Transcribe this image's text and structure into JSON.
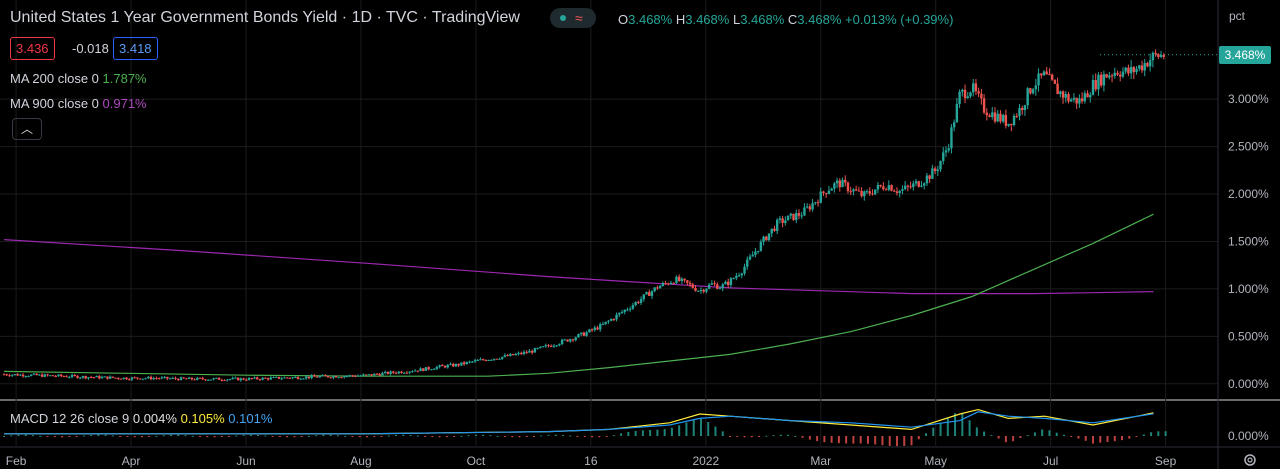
{
  "header": {
    "title": "United States 1 Year Government Bonds Yield",
    "interval": "1D",
    "exchange": "TVC",
    "platform": "TradingView",
    "sep": "·"
  },
  "ohlc": {
    "o_label": "O",
    "o": "3.468%",
    "h_label": "H",
    "h": "3.468%",
    "l_label": "L",
    "l": "3.468%",
    "c_label": "C",
    "c": "3.468%",
    "change": "+0.013% (+0.39%)"
  },
  "trade": {
    "bid": "3.436",
    "spread": "-0.018",
    "ask": "3.418"
  },
  "indicators": {
    "ma200": {
      "label": "MA 200 close 0",
      "value": "1.787%"
    },
    "ma900": {
      "label": "MA 900 close 0",
      "value": "0.971%"
    },
    "macd": {
      "label": "MACD 12 26 close 9",
      "hist": "0.004%",
      "macd": "0.105%",
      "signal": "0.101%"
    }
  },
  "colors": {
    "up": "#26a69a",
    "down": "#ef5350",
    "ma200": "#4caf50",
    "ma900": "#9c27b0",
    "macd": "#ffeb3b",
    "signal": "#2196f3",
    "grid": "#1c1c1c",
    "axis_text": "#b2b5be"
  },
  "icons": {
    "collapse": "chevron-up-icon",
    "settings": "gear-icon",
    "logo": "tv-logo-icon"
  },
  "axis": {
    "unit": "pct",
    "last_price_label": "3.468%",
    "y_ticks": [
      3.0,
      2.5,
      2.0,
      1.5,
      1.0,
      0.5,
      0.0
    ],
    "y_tick_labels": [
      "3.000%",
      "2.500%",
      "2.000%",
      "1.500%",
      "1.000%",
      "0.500%",
      "0.000%"
    ],
    "macd_tick_label": "0.000%",
    "x_tick_labels": [
      "Feb",
      "Apr",
      "Jun",
      "Aug",
      "Oct",
      "16",
      "2022",
      "Mar",
      "May",
      "Jul",
      "Sep"
    ]
  },
  "chart_data": {
    "type": "line",
    "title": "United States 1 Year Government Bonds Yield",
    "ylabel": "pct",
    "ylim": [
      -0.15,
      3.75
    ],
    "x_tick_labels": [
      "Feb",
      "Apr",
      "Jun",
      "Aug",
      "Oct",
      "16",
      "2022",
      "Mar",
      "May",
      "Jul",
      "Sep"
    ],
    "series": [
      {
        "name": "United States 1 Year Government Bonds Yield",
        "x": [
          0,
          0.5,
          1,
          1.5,
          2,
          2.5,
          3,
          3.5,
          4,
          4.5,
          5,
          5.5,
          6,
          6.3,
          6.6,
          6.9,
          7.2,
          7.5,
          7.8,
          8.1,
          8.4,
          8.7,
          9,
          9.3,
          9.6,
          9.9,
          10.2,
          10.5,
          10.8,
          11.1,
          11.3,
          11.5,
          11.7,
          11.85,
          12.0,
          12.2,
          12.4,
          12.6,
          12.8,
          13.0,
          13.2,
          13.4,
          13.6,
          13.8,
          14.0,
          14.2,
          14.4,
          14.6,
          14.8,
          15.0,
          15.2,
          15.4,
          15.6,
          15.8,
          16.0,
          16.2,
          16.4,
          16.6,
          16.8,
          17.0,
          17.2,
          17.4,
          17.6,
          17.8,
          18.0,
          18.2,
          18.4,
          18.6,
          18.8,
          19.0,
          19.2
        ],
        "values": [
          0.1,
          0.09,
          0.08,
          0.07,
          0.06,
          0.06,
          0.05,
          0.05,
          0.05,
          0.06,
          0.07,
          0.08,
          0.09,
          0.11,
          0.13,
          0.15,
          0.18,
          0.2,
          0.24,
          0.27,
          0.3,
          0.34,
          0.4,
          0.46,
          0.53,
          0.62,
          0.75,
          0.88,
          1.02,
          1.1,
          1.05,
          0.98,
          1.05,
          1.02,
          1.08,
          1.2,
          1.38,
          1.55,
          1.7,
          1.75,
          1.8,
          1.92,
          2.05,
          2.12,
          2.05,
          1.98,
          2.05,
          2.1,
          2.03,
          2.08,
          2.15,
          2.25,
          2.5,
          3.05,
          3.12,
          2.9,
          2.82,
          2.75,
          2.9,
          3.15,
          3.25,
          3.1,
          3.0,
          2.98,
          3.15,
          3.25,
          3.3,
          3.28,
          3.35,
          3.45,
          3.468
        ]
      },
      {
        "name": "MA 200 close 0",
        "x": [
          0,
          2,
          4,
          6,
          8,
          9,
          10,
          11,
          12,
          13,
          14,
          15,
          16,
          17,
          18,
          19
        ],
        "values": [
          0.13,
          0.11,
          0.09,
          0.08,
          0.08,
          0.11,
          0.17,
          0.24,
          0.31,
          0.42,
          0.55,
          0.72,
          0.92,
          1.2,
          1.48,
          1.787
        ]
      },
      {
        "name": "MA 900 close 0",
        "x": [
          0,
          3,
          6,
          9,
          11,
          12,
          13,
          14,
          15,
          16,
          17,
          18,
          19
        ],
        "values": [
          1.52,
          1.4,
          1.27,
          1.13,
          1.05,
          1.01,
          0.99,
          0.97,
          0.95,
          0.95,
          0.95,
          0.96,
          0.971
        ]
      }
    ],
    "macd": {
      "x": [
        0,
        3,
        6,
        9,
        10,
        11,
        11.5,
        12,
        13,
        14,
        15,
        15.8,
        16.1,
        16.6,
        17.2,
        18,
        19
      ],
      "macd_values": [
        0.01,
        0.01,
        0.01,
        0.02,
        0.03,
        0.06,
        0.1,
        0.09,
        0.07,
        0.05,
        0.03,
        0.1,
        0.12,
        0.08,
        0.09,
        0.05,
        0.105
      ],
      "signal_values": [
        0.01,
        0.01,
        0.01,
        0.02,
        0.03,
        0.05,
        0.08,
        0.09,
        0.07,
        0.06,
        0.04,
        0.07,
        0.11,
        0.09,
        0.08,
        0.06,
        0.101
      ]
    }
  }
}
